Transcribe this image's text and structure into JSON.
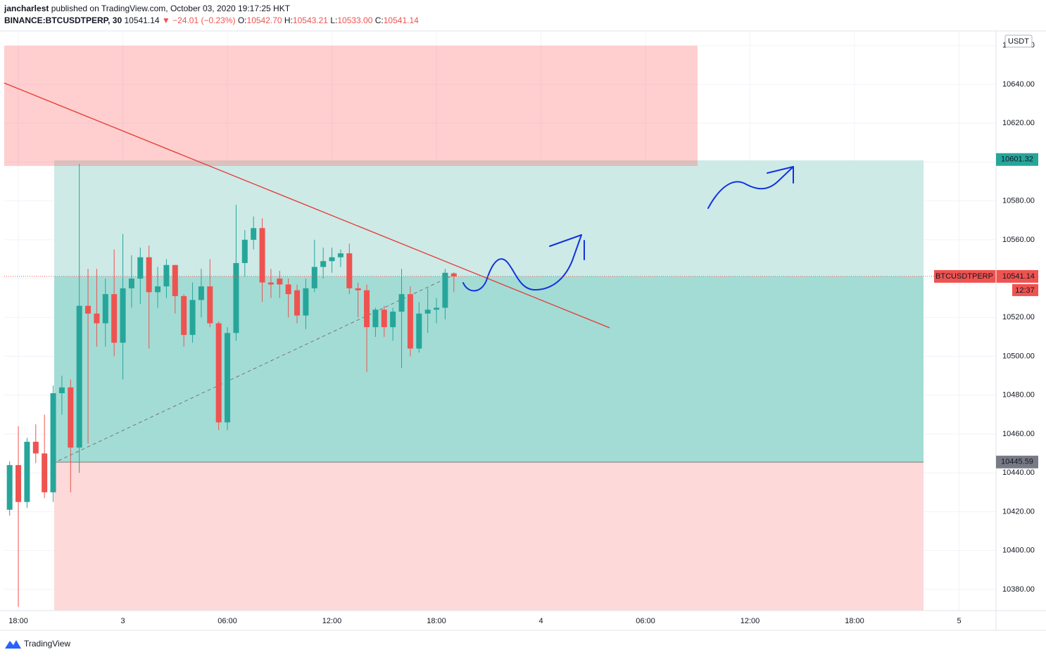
{
  "chart_data": {
    "type": "candlestick",
    "header": {
      "author": "jancharlest",
      "published": "published on TradingView.com, October 03, 2020 19:17:25 HKT",
      "symbol": "BINANCE:BTCUSDTPERP, 30",
      "last": "10541.14",
      "change": "▼ −24.01 (−0.23%)",
      "ohlc": [
        {
          "label": "O:",
          "value": "10542.70"
        },
        {
          "label": "H:",
          "value": "10543.21"
        },
        {
          "label": "L:",
          "value": "10533.00"
        },
        {
          "label": "C:",
          "value": "10541.14"
        }
      ]
    },
    "currency": "USDT",
    "up_color": "#26a69a",
    "down_color": "#ef5350",
    "grid": true,
    "x": [
      17.5,
      18,
      18.5,
      19,
      19.5,
      20,
      20.5,
      21,
      21.5,
      22,
      22.5,
      23,
      23.5,
      24,
      24.5,
      25,
      25.5,
      26,
      26.5,
      27,
      27.5,
      28,
      28.5,
      29,
      29.5,
      30,
      30.5,
      31,
      31.5,
      32,
      32.5,
      33,
      33.5,
      34,
      34.5,
      35,
      35.5,
      36,
      36.5,
      37,
      37.5,
      38,
      38.5,
      39,
      39.5,
      40,
      40.5,
      41,
      41.5,
      42,
      42.5,
      43
    ],
    "open": [
      10421,
      10444,
      10425,
      10456,
      10450,
      10430,
      10481,
      10484,
      10453,
      10526,
      10522,
      10517,
      10532,
      10507,
      10535,
      10540,
      10551,
      10533,
      10536,
      10547,
      10531,
      10511,
      10529,
      10536,
      10517,
      10466,
      10512,
      10548,
      10560,
      10566,
      10538,
      10540,
      10537,
      10534,
      10521,
      10535,
      10546,
      10549,
      10551,
      10553,
      10535,
      10534,
      10515,
      10524,
      10515,
      10523,
      10532,
      10504,
      10522,
      10524,
      10525,
      10542.7
    ],
    "high": [
      10446,
      10464,
      10458,
      10465,
      10470,
      10485,
      10490,
      10488,
      10599,
      10545,
      10545,
      10540,
      10555,
      10563,
      10552,
      10556,
      10557,
      10546,
      10550,
      10547,
      10532,
      10538,
      10545,
      10550,
      10518,
      10515,
      10578,
      10565,
      10572,
      10571,
      10545,
      10544,
      10540,
      10537,
      10540,
      10560,
      10556,
      10556,
      10555,
      10558,
      10538,
      10537,
      10525,
      10526,
      10525,
      10545,
      10536,
      10528,
      10535,
      10530,
      10545,
      10543.21
    ],
    "low": [
      10418,
      10371,
      10422,
      10445,
      10427,
      10425,
      10470,
      10430,
      10440,
      10455,
      10505,
      10505,
      10500,
      10488,
      10525,
      10527,
      10504,
      10525,
      10530,
      10522,
      10505,
      10507,
      10520,
      10515,
      10462,
      10462,
      10508,
      10541,
      10555,
      10528,
      10530,
      10530,
      10520,
      10517,
      10514,
      10533,
      10540,
      10543,
      10546,
      10532,
      10520,
      10492,
      10510,
      10510,
      10508,
      10494,
      10500,
      10502,
      10512,
      10517,
      10519,
      10533.0
    ],
    "close": [
      10444,
      10425,
      10456,
      10450,
      10430,
      10481,
      10484,
      10453,
      10526,
      10522,
      10517,
      10532,
      10507,
      10535,
      10540,
      10551,
      10533,
      10536,
      10547,
      10531,
      10511,
      10529,
      10536,
      10517,
      10466,
      10512,
      10548,
      10560,
      10566,
      10538,
      10537,
      10537,
      10532,
      10521,
      10535,
      10546,
      10549,
      10551,
      10553,
      10535,
      10534,
      10515,
      10524,
      10515,
      10523,
      10532,
      10504,
      10522,
      10524,
      10525,
      10543,
      10541.14
    ],
    "xlim": [
      17.19,
      74.12
    ],
    "xticks": [
      {
        "value": 18,
        "label": "18:00"
      },
      {
        "value": 24,
        "label": "3"
      },
      {
        "value": 30,
        "label": "06:00"
      },
      {
        "value": 36,
        "label": "12:00"
      },
      {
        "value": 42,
        "label": "18:00"
      },
      {
        "value": 48,
        "label": "4"
      },
      {
        "value": 54,
        "label": "06:00"
      },
      {
        "value": 60,
        "label": "12:00"
      },
      {
        "value": 66,
        "label": "18:00"
      },
      {
        "value": 72,
        "label": "5"
      }
    ],
    "ylim": [
      10369.1,
      10667.5
    ],
    "yticks": [
      {
        "value": 10380,
        "label": "10380.00"
      },
      {
        "value": 10400,
        "label": "10400.00"
      },
      {
        "value": 10420,
        "label": "10420.00"
      },
      {
        "value": 10440,
        "label": "10440.00"
      },
      {
        "value": 10460,
        "label": "10460.00"
      },
      {
        "value": 10480,
        "label": "10480.00"
      },
      {
        "value": 10500,
        "label": "10500.00"
      },
      {
        "value": 10520,
        "label": "10520.00"
      },
      {
        "value": 10540,
        "label": "10540.00"
      },
      {
        "value": 10560,
        "label": "10560.00"
      },
      {
        "value": 10580,
        "label": "10580.00"
      },
      {
        "value": 10600,
        "label": "10600.00"
      },
      {
        "value": 10620,
        "label": "10620.00"
      },
      {
        "value": 10640,
        "label": "10640.00"
      },
      {
        "value": 10660,
        "label": "10660.00"
      }
    ],
    "target_label": {
      "value": 10601.32,
      "color": "#26a69a"
    },
    "stop_label": {
      "value": 10445.59,
      "color": "#787b86"
    },
    "last_price": {
      "symbol": "BTCUSDTPERP",
      "value": 10541.14,
      "countdown": "12:37",
      "color": "#ef5350"
    },
    "brand": "TradingView"
  }
}
